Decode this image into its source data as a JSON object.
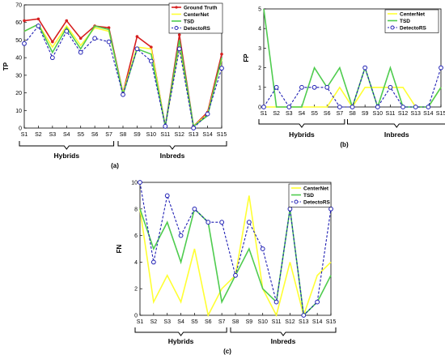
{
  "chart_data": [
    {
      "type": "line",
      "panel_label": "(a)",
      "ylabel": "TP",
      "ylim": [
        0,
        70
      ],
      "yticks": [
        0,
        10,
        20,
        30,
        40,
        50,
        60,
        70
      ],
      "categories": [
        "S1",
        "S2",
        "S3",
        "S4",
        "S5",
        "S6",
        "S7",
        "S8",
        "S9",
        "S10",
        "S11",
        "S12",
        "S13",
        "S14",
        "S15"
      ],
      "groups": [
        {
          "label": "Hybrids",
          "from": 0,
          "to": 6
        },
        {
          "label": "Inbreds",
          "from": 7,
          "to": 14
        }
      ],
      "legend_position": "top-right",
      "series": [
        {
          "name": "Ground Truth",
          "color": "#d62020",
          "dash": false,
          "marker": "dot",
          "values": [
            61,
            62,
            49,
            61,
            51,
            58,
            57,
            20,
            52,
            46,
            1,
            53,
            1,
            9,
            42
          ]
        },
        {
          "name": "CenterNet",
          "color": "#ffff33",
          "dash": false,
          "marker": "none",
          "values": [
            55,
            59,
            46,
            58,
            47,
            57,
            55,
            20,
            46,
            45,
            1,
            47,
            1,
            8,
            39
          ]
        },
        {
          "name": "TSD",
          "color": "#4fcc4f",
          "dash": false,
          "marker": "none",
          "values": [
            55,
            59,
            43,
            57,
            45,
            58,
            56,
            19,
            45,
            42,
            1,
            50,
            1,
            7,
            40
          ]
        },
        {
          "name": "DetectoRS",
          "color": "#1f1fb4",
          "dash": true,
          "marker": "circle",
          "values": [
            48,
            58,
            40,
            55,
            43,
            51,
            49,
            19,
            45,
            38,
            1,
            45,
            0,
            8,
            34
          ]
        }
      ]
    },
    {
      "type": "line",
      "panel_label": "(b)",
      "ylabel": "FP",
      "ylim": [
        0,
        5
      ],
      "yticks": [
        0,
        1,
        2,
        3,
        4,
        5
      ],
      "categories": [
        "S1",
        "S2",
        "S3",
        "S4",
        "S5",
        "S6",
        "S7",
        "S8",
        "S9",
        "S10",
        "S11",
        "S12",
        "S13",
        "S14",
        "S15"
      ],
      "groups": [
        {
          "label": "Hybrids",
          "from": 0,
          "to": 6
        },
        {
          "label": "Inbreds",
          "from": 7,
          "to": 14
        }
      ],
      "legend_position": "top-right",
      "series": [
        {
          "name": "CenterNet",
          "color": "#ffff33",
          "dash": false,
          "marker": "none",
          "values": [
            0,
            0,
            0,
            0,
            0,
            0,
            1,
            0,
            1,
            1,
            1,
            1,
            0,
            0,
            1
          ]
        },
        {
          "name": "TSD",
          "color": "#4fcc4f",
          "dash": false,
          "marker": "none",
          "values": [
            5,
            0,
            0,
            0,
            2,
            1,
            2,
            0,
            2,
            0,
            2,
            0,
            0,
            0,
            1
          ]
        },
        {
          "name": "DetectoRS",
          "color": "#1f1fb4",
          "dash": true,
          "marker": "circle",
          "values": [
            0,
            1,
            0,
            1,
            1,
            1,
            0,
            0,
            2,
            0,
            1,
            0,
            0,
            0,
            2
          ]
        }
      ]
    },
    {
      "type": "line",
      "panel_label": "(c)",
      "ylabel": "FN",
      "ylim": [
        0,
        10
      ],
      "yticks": [
        0,
        2,
        4,
        6,
        8,
        10
      ],
      "categories": [
        "S1",
        "S2",
        "S3",
        "S4",
        "S5",
        "S6",
        "S7",
        "S8",
        "S9",
        "S10",
        "S11",
        "S12",
        "S13",
        "S14",
        "S15"
      ],
      "groups": [
        {
          "label": "Hybrids",
          "from": 0,
          "to": 6
        },
        {
          "label": "Inbreds",
          "from": 7,
          "to": 14
        }
      ],
      "legend_position": "top-right",
      "series": [
        {
          "name": "CenterNet",
          "color": "#ffff33",
          "dash": false,
          "marker": "none",
          "values": [
            8,
            1,
            3,
            1,
            5,
            0,
            2,
            3,
            9,
            2,
            0,
            4,
            0,
            3,
            4
          ]
        },
        {
          "name": "TSD",
          "color": "#4fcc4f",
          "dash": false,
          "marker": "none",
          "values": [
            8,
            5,
            7,
            4,
            8,
            7,
            1,
            3,
            5,
            2,
            1,
            8,
            0,
            1,
            3
          ]
        },
        {
          "name": "DetectoRS",
          "color": "#1f1fb4",
          "dash": true,
          "marker": "circle",
          "values": [
            10,
            4,
            9,
            6,
            8,
            7,
            7,
            3,
            7,
            5,
            1,
            8,
            0,
            1,
            8
          ]
        }
      ]
    }
  ]
}
